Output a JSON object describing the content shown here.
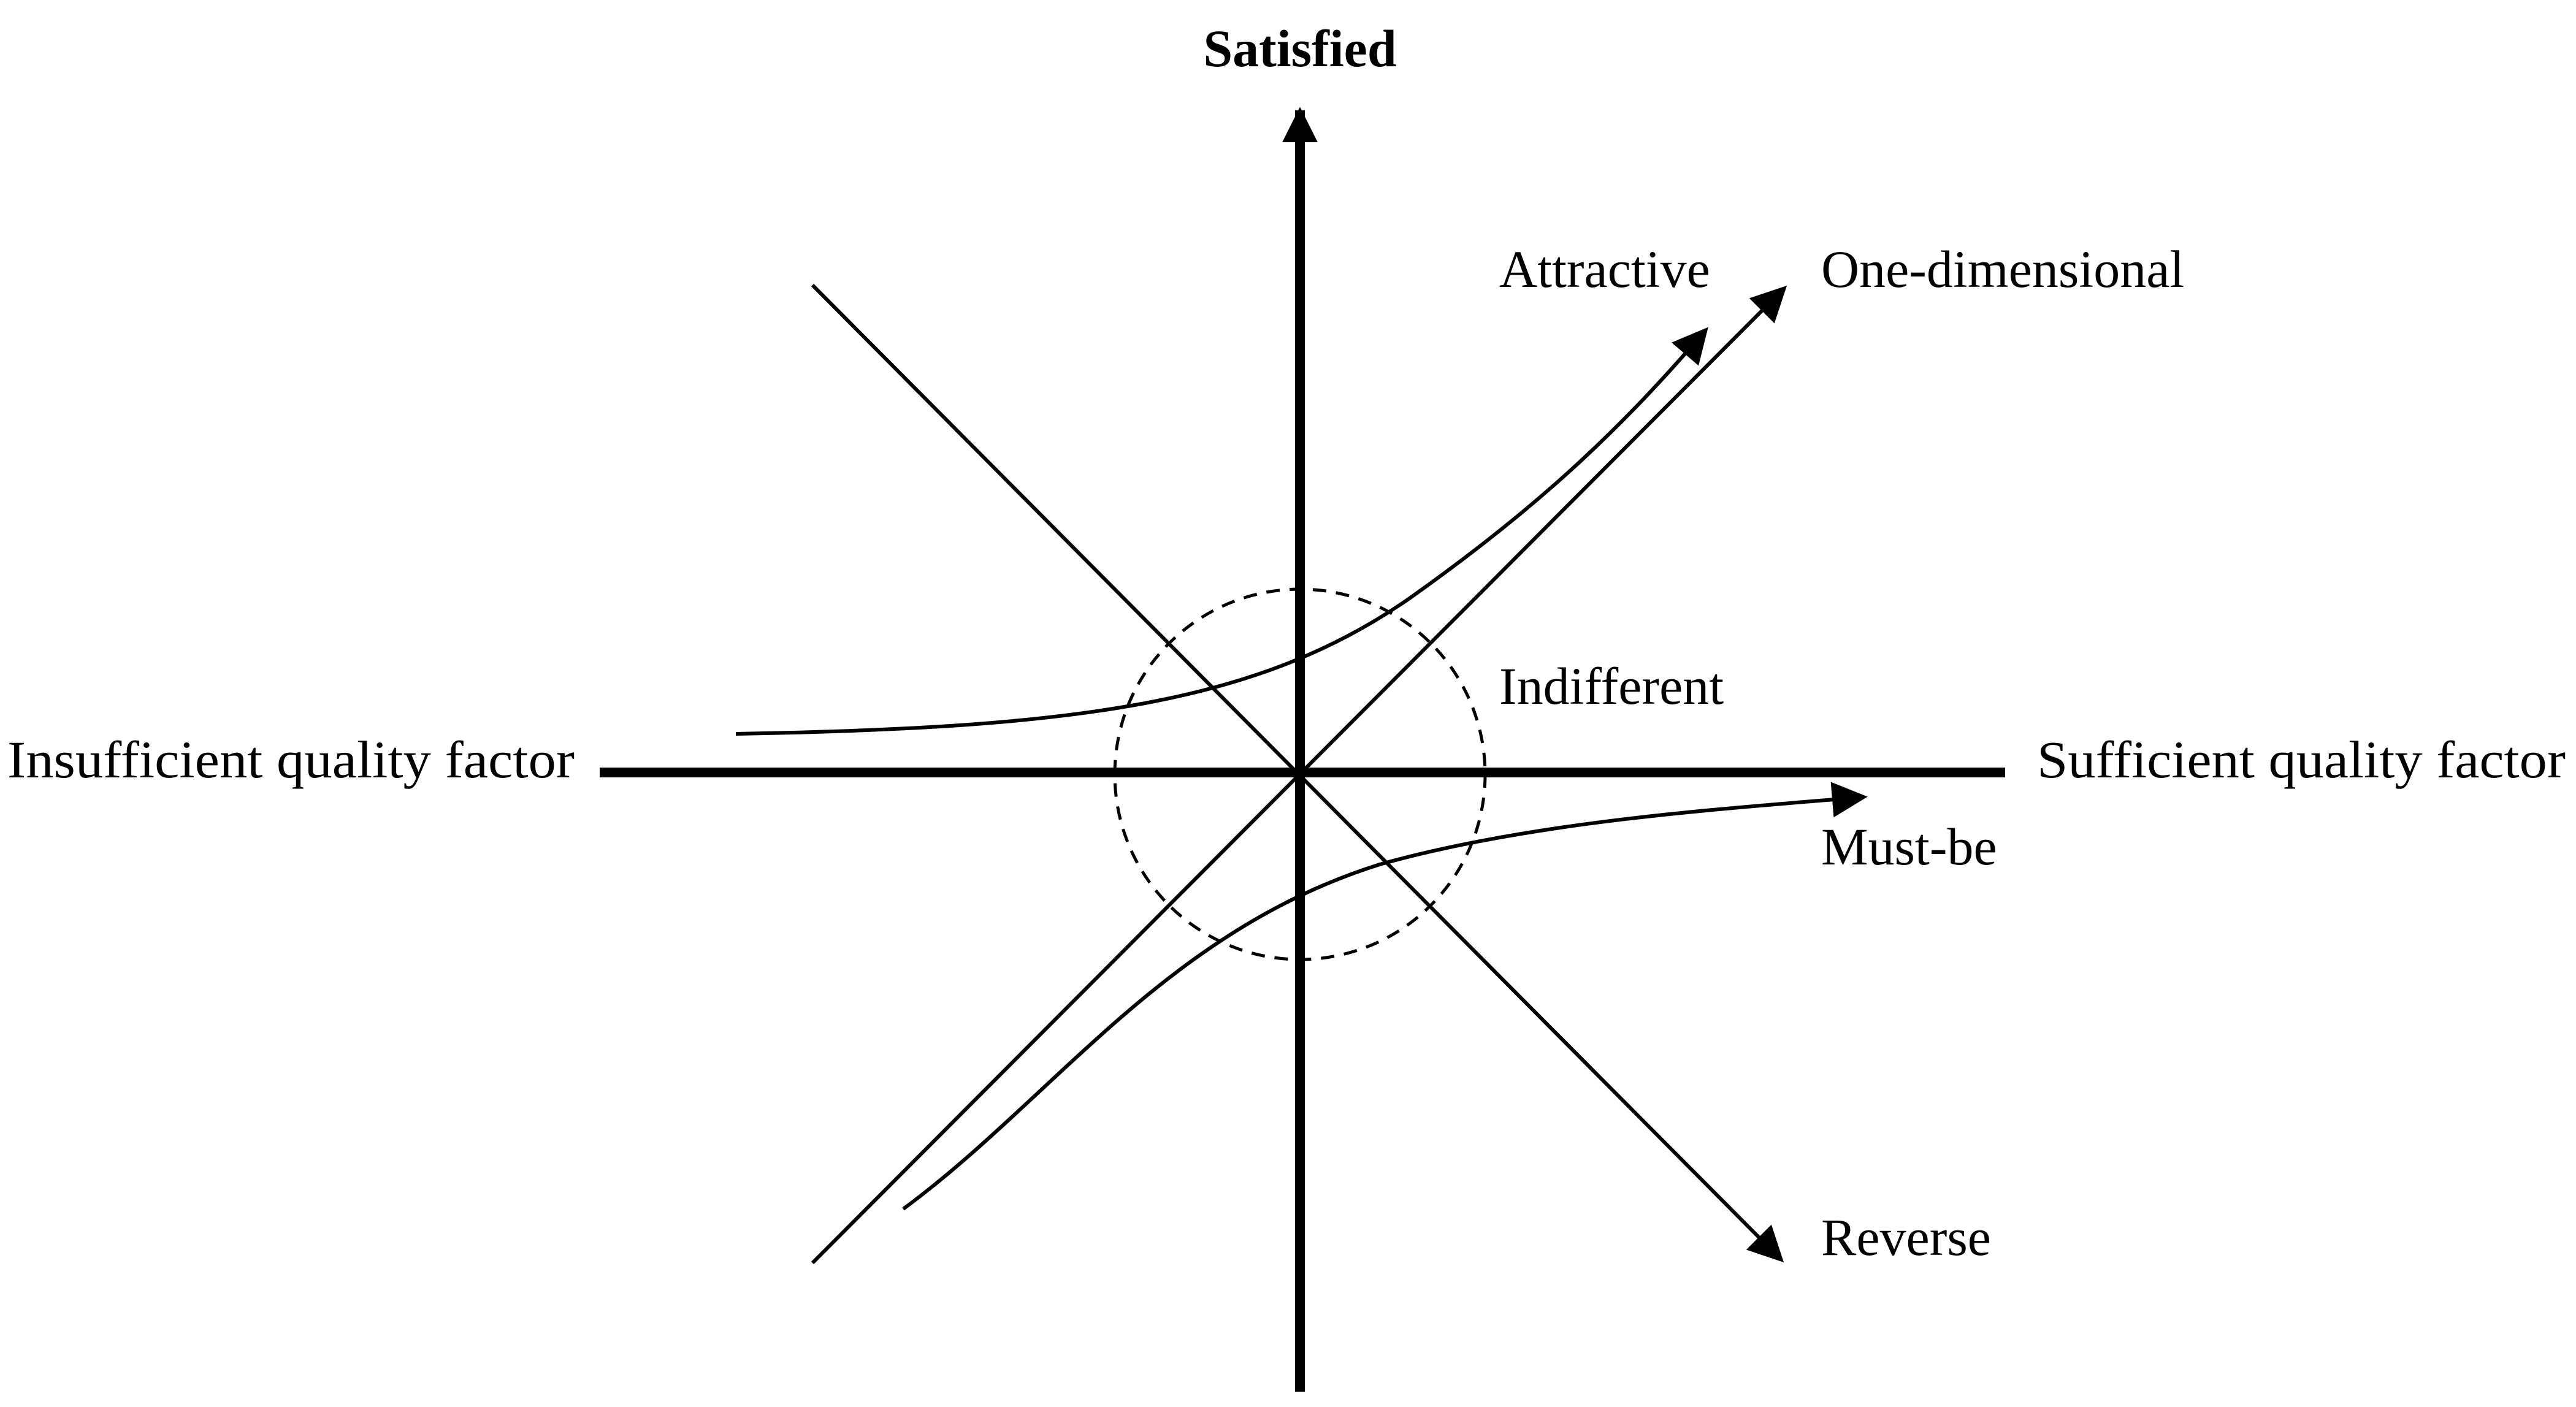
{
  "diagram": {
    "axis_top_label": "Satisfied",
    "axis_left_label": "Insufficient quality factor",
    "axis_right_label": "Sufficient quality factor",
    "labels": {
      "attractive": "Attractive",
      "one_dimensional": "One-dimensional",
      "indifferent": "Indifferent",
      "must_be": "Must-be",
      "reverse": "Reverse"
    },
    "colors": {
      "stroke": "#000000",
      "background": "#ffffff"
    }
  }
}
